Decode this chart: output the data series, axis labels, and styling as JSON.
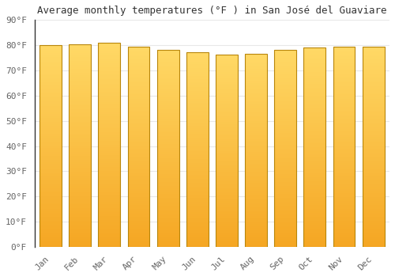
{
  "title": "Average monthly temperatures (°F ) in San José del Guaviare",
  "months": [
    "Jan",
    "Feb",
    "Mar",
    "Apr",
    "May",
    "Jun",
    "Jul",
    "Aug",
    "Sep",
    "Oct",
    "Nov",
    "Dec"
  ],
  "values": [
    80.0,
    80.2,
    81.0,
    79.5,
    78.2,
    77.2,
    76.2,
    76.6,
    78.0,
    79.0,
    79.5,
    79.5
  ],
  "ylim": [
    0,
    90
  ],
  "yticks": [
    0,
    10,
    20,
    30,
    40,
    50,
    60,
    70,
    80,
    90
  ],
  "ytick_labels": [
    "0°F",
    "10°F",
    "20°F",
    "30°F",
    "40°F",
    "50°F",
    "60°F",
    "70°F",
    "80°F",
    "90°F"
  ],
  "bar_color_bottom": "#F5A623",
  "bar_color_top": "#FFD966",
  "bar_edge_color": "#B8860B",
  "background_color": "#ffffff",
  "plot_bg_color": "#ffffff",
  "grid_color": "#e8e8e8",
  "title_fontsize": 9,
  "tick_fontsize": 8,
  "text_color": "#666666",
  "title_color": "#333333"
}
